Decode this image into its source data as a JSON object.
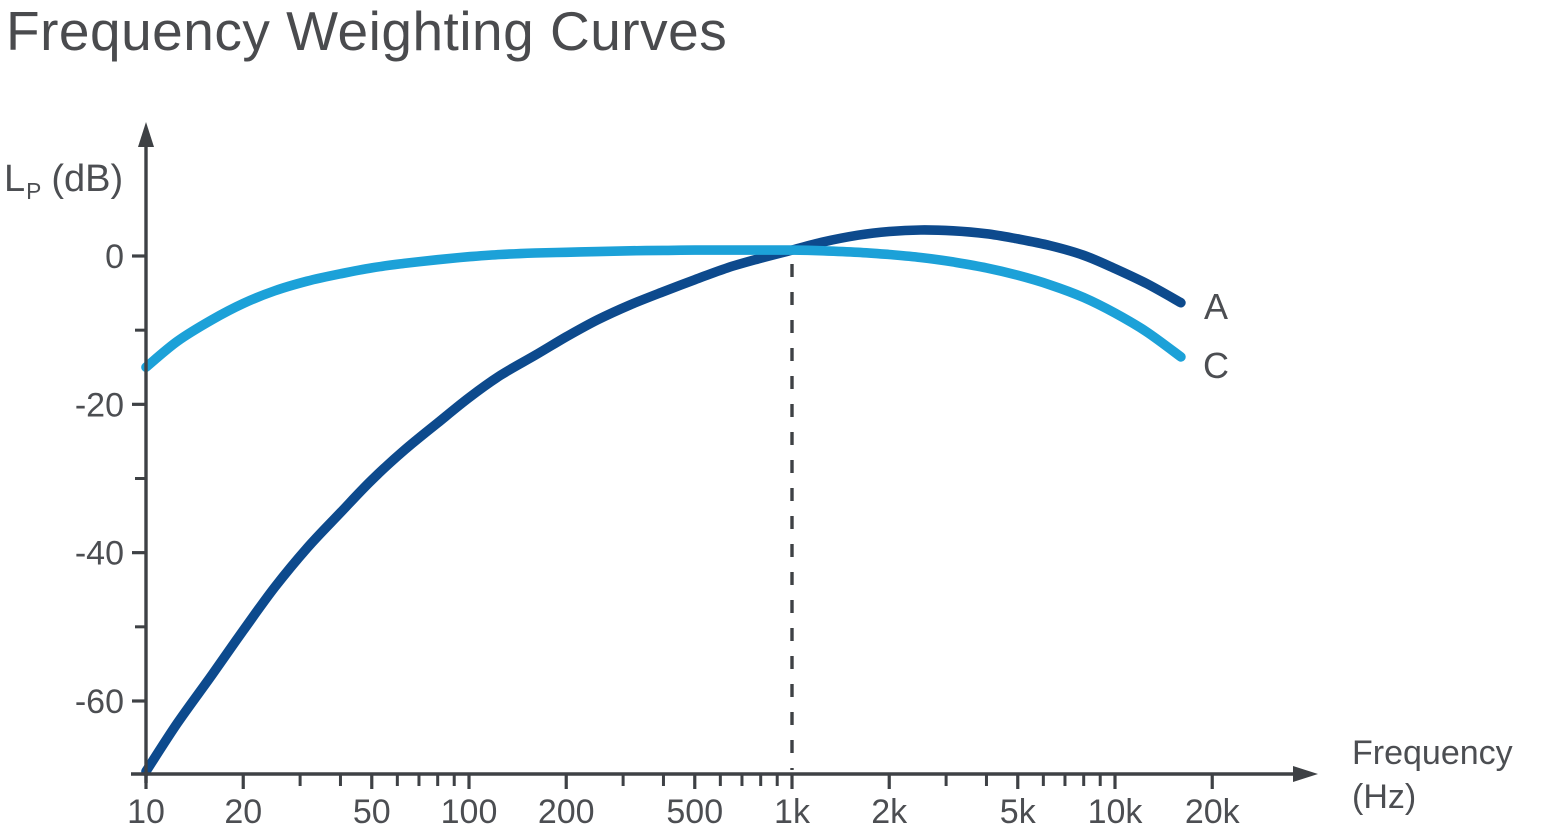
{
  "title": "Frequency Weighting Curves",
  "colors": {
    "curve_a": "#0d4a8d",
    "curve_c": "#1ca1d8",
    "axis": "#3e4145",
    "text": "#4c4e52",
    "background": "#ffffff"
  },
  "chart_data": {
    "type": "line",
    "title": "Frequency Weighting Curves",
    "x_scale": "log",
    "grid": false,
    "legend_position": "curve-end-labels",
    "xlim": [
      10,
      40000
    ],
    "ylim": [
      -70,
      17
    ],
    "x_axis": {
      "label_line1": "Frequency",
      "label_line2": "(Hz)",
      "major_ticks": [
        {
          "value": 10,
          "label": "10"
        },
        {
          "value": 20,
          "label": "20"
        },
        {
          "value": 50,
          "label": "50"
        },
        {
          "value": 100,
          "label": "100"
        },
        {
          "value": 200,
          "label": "200"
        },
        {
          "value": 500,
          "label": "500"
        },
        {
          "value": 1000,
          "label": "1k"
        },
        {
          "value": 2000,
          "label": "2k"
        },
        {
          "value": 5000,
          "label": "5k"
        },
        {
          "value": 10000,
          "label": "10k"
        },
        {
          "value": 20000,
          "label": "20k"
        }
      ],
      "minor_ticks": [
        30,
        40,
        60,
        70,
        80,
        90,
        300,
        400,
        600,
        700,
        800,
        900,
        3000,
        4000,
        6000,
        7000,
        8000,
        9000
      ]
    },
    "y_axis": {
      "label_main": "L",
      "label_sub": "P",
      "label_unit": "(dB)",
      "major_ticks": [
        {
          "value": 0,
          "label": "0"
        },
        {
          "value": -20,
          "label": "-20"
        },
        {
          "value": -40,
          "label": "-40"
        },
        {
          "value": -60,
          "label": "-60"
        }
      ],
      "minor_ticks": [
        -10,
        -30,
        -50
      ]
    },
    "reference_line": {
      "frequency_hz": 1000,
      "style": "dashed"
    },
    "series": [
      {
        "name": "A",
        "color": "#0d4a8d",
        "points": [
          [
            10,
            -69.5
          ],
          [
            12.5,
            -63
          ],
          [
            16,
            -56.5
          ],
          [
            20,
            -50.5
          ],
          [
            25,
            -44.7
          ],
          [
            31.5,
            -39.4
          ],
          [
            40,
            -34.6
          ],
          [
            50,
            -30.2
          ],
          [
            63,
            -26.2
          ],
          [
            80,
            -22.5
          ],
          [
            100,
            -19.1
          ],
          [
            125,
            -16.1
          ],
          [
            160,
            -13.4
          ],
          [
            200,
            -10.9
          ],
          [
            250,
            -8.6
          ],
          [
            315,
            -6.6
          ],
          [
            400,
            -4.8
          ],
          [
            500,
            -3.2
          ],
          [
            630,
            -1.6
          ],
          [
            800,
            -0.3
          ],
          [
            1000,
            0.8
          ],
          [
            1250,
            1.9
          ],
          [
            1600,
            2.8
          ],
          [
            2000,
            3.3
          ],
          [
            2500,
            3.5
          ],
          [
            3150,
            3.4
          ],
          [
            4000,
            3.0
          ],
          [
            5000,
            2.3
          ],
          [
            6300,
            1.4
          ],
          [
            8000,
            0.1
          ],
          [
            10000,
            -1.7
          ],
          [
            12500,
            -3.7
          ],
          [
            16000,
            -6.3
          ]
        ]
      },
      {
        "name": "C",
        "color": "#1ca1d8",
        "points": [
          [
            10,
            -15.0
          ],
          [
            12.5,
            -11.5
          ],
          [
            16,
            -8.6
          ],
          [
            20,
            -6.4
          ],
          [
            25,
            -4.7
          ],
          [
            31.5,
            -3.4
          ],
          [
            40,
            -2.4
          ],
          [
            50,
            -1.6
          ],
          [
            63,
            -1.0
          ],
          [
            80,
            -0.5
          ],
          [
            100,
            -0.1
          ],
          [
            125,
            0.2
          ],
          [
            160,
            0.4
          ],
          [
            200,
            0.5
          ],
          [
            250,
            0.6
          ],
          [
            315,
            0.7
          ],
          [
            400,
            0.75
          ],
          [
            500,
            0.8
          ],
          [
            630,
            0.8
          ],
          [
            800,
            0.8
          ],
          [
            1000,
            0.8
          ],
          [
            1250,
            0.7
          ],
          [
            1600,
            0.5
          ],
          [
            2000,
            0.2
          ],
          [
            2500,
            -0.2
          ],
          [
            3150,
            -0.8
          ],
          [
            4000,
            -1.6
          ],
          [
            5000,
            -2.6
          ],
          [
            6300,
            -3.9
          ],
          [
            8000,
            -5.6
          ],
          [
            10000,
            -7.7
          ],
          [
            12500,
            -10.2
          ],
          [
            16000,
            -13.6
          ]
        ]
      }
    ]
  }
}
